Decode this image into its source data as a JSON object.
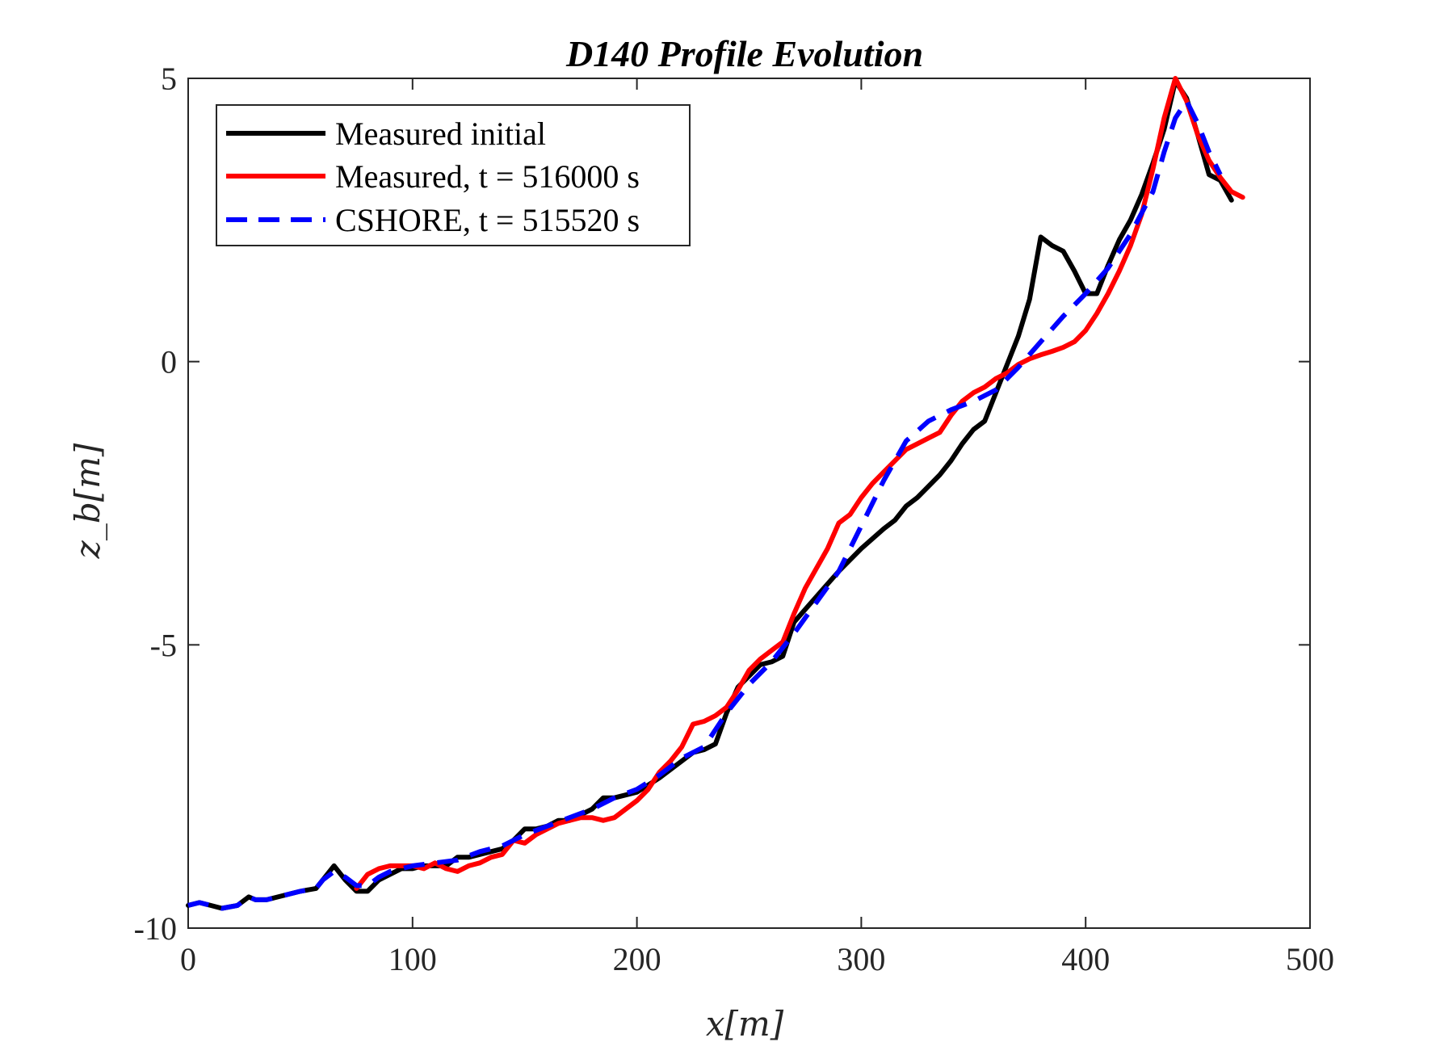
{
  "chart_data": {
    "type": "line",
    "title": "D140 Profile Evolution",
    "xlabel": "x[m]",
    "ylabel": "z_b[m]",
    "xlim": [
      0,
      500
    ],
    "ylim": [
      -10,
      5
    ],
    "xticks": [
      0,
      100,
      200,
      300,
      400,
      500
    ],
    "yticks": [
      -10,
      -5,
      0,
      5
    ],
    "xtick_labels": [
      "0",
      "100",
      "200",
      "300",
      "400",
      "500"
    ],
    "ytick_labels": [
      "-10",
      "-5",
      "0",
      "5"
    ],
    "grid": false,
    "legend_position": "top-left",
    "series": [
      {
        "name": "Measured initial",
        "color": "#000000",
        "style": "solid",
        "x": [
          0,
          5,
          10,
          15,
          22,
          27,
          30,
          35,
          40,
          45,
          50,
          57,
          60,
          65,
          70,
          75,
          80,
          85,
          90,
          95,
          100,
          105,
          110,
          115,
          120,
          125,
          130,
          135,
          140,
          145,
          150,
          155,
          160,
          165,
          170,
          175,
          180,
          185,
          190,
          195,
          200,
          210,
          220,
          225,
          230,
          235,
          240,
          245,
          250,
          255,
          260,
          265,
          270,
          280,
          290,
          300,
          310,
          315,
          320,
          325,
          330,
          335,
          340,
          345,
          350,
          355,
          360,
          365,
          370,
          375,
          380,
          385,
          390,
          395,
          400,
          405,
          410,
          415,
          420,
          425,
          430,
          435,
          440,
          445,
          450,
          455,
          460,
          465
        ],
        "y": [
          -9.6,
          -9.55,
          -9.6,
          -9.65,
          -9.6,
          -9.45,
          -9.5,
          -9.5,
          -9.45,
          -9.4,
          -9.35,
          -9.3,
          -9.15,
          -8.9,
          -9.15,
          -9.35,
          -9.35,
          -9.15,
          -9.05,
          -8.95,
          -8.95,
          -8.9,
          -8.9,
          -8.9,
          -8.75,
          -8.75,
          -8.7,
          -8.65,
          -8.6,
          -8.45,
          -8.25,
          -8.25,
          -8.2,
          -8.1,
          -8.1,
          -8.0,
          -7.9,
          -7.7,
          -7.7,
          -7.65,
          -7.6,
          -7.35,
          -7.05,
          -6.9,
          -6.85,
          -6.75,
          -6.2,
          -5.75,
          -5.55,
          -5.35,
          -5.3,
          -5.2,
          -4.6,
          -4.15,
          -3.7,
          -3.3,
          -2.95,
          -2.8,
          -2.55,
          -2.4,
          -2.2,
          -2.0,
          -1.75,
          -1.45,
          -1.2,
          -1.05,
          -0.55,
          -0.05,
          0.45,
          1.1,
          2.2,
          2.05,
          1.95,
          1.6,
          1.2,
          1.2,
          1.7,
          2.15,
          2.5,
          2.95,
          3.5,
          4.1,
          4.95,
          4.65,
          4.0,
          3.3,
          3.2,
          2.85
        ]
      },
      {
        "name": "Measured, t = 516000 s",
        "color": "#ff0000",
        "style": "solid",
        "x": [
          75,
          80,
          85,
          90,
          95,
          100,
          105,
          110,
          115,
          120,
          125,
          130,
          135,
          140,
          145,
          150,
          155,
          160,
          165,
          170,
          175,
          180,
          185,
          190,
          195,
          200,
          205,
          210,
          215,
          220,
          225,
          230,
          235,
          240,
          245,
          250,
          255,
          260,
          265,
          270,
          275,
          280,
          285,
          290,
          295,
          300,
          305,
          310,
          315,
          320,
          325,
          330,
          335,
          340,
          345,
          350,
          355,
          360,
          365,
          370,
          375,
          380,
          385,
          390,
          395,
          400,
          405,
          410,
          415,
          420,
          425,
          430,
          435,
          440,
          445,
          450,
          455,
          460,
          465,
          470
        ],
        "y": [
          -9.3,
          -9.05,
          -8.95,
          -8.9,
          -8.9,
          -8.9,
          -8.95,
          -8.85,
          -8.95,
          -9.0,
          -8.9,
          -8.85,
          -8.75,
          -8.7,
          -8.45,
          -8.5,
          -8.35,
          -8.25,
          -8.15,
          -8.1,
          -8.05,
          -8.05,
          -8.1,
          -8.05,
          -7.9,
          -7.75,
          -7.55,
          -7.25,
          -7.05,
          -6.8,
          -6.4,
          -6.35,
          -6.25,
          -6.1,
          -5.8,
          -5.45,
          -5.25,
          -5.1,
          -4.95,
          -4.45,
          -4.0,
          -3.65,
          -3.3,
          -2.85,
          -2.7,
          -2.4,
          -2.15,
          -1.95,
          -1.75,
          -1.55,
          -1.45,
          -1.35,
          -1.25,
          -0.95,
          -0.7,
          -0.55,
          -0.45,
          -0.3,
          -0.2,
          -0.05,
          0.05,
          0.12,
          0.18,
          0.25,
          0.35,
          0.55,
          0.85,
          1.2,
          1.6,
          2.05,
          2.6,
          3.4,
          4.3,
          5.0,
          4.6,
          4.0,
          3.55,
          3.25,
          3.0,
          2.9
        ]
      },
      {
        "name": "CSHORE, t = 515520 s",
        "color": "#0000ff",
        "style": "dashed",
        "x": [
          0,
          5,
          10,
          15,
          22,
          27,
          30,
          35,
          40,
          45,
          50,
          57,
          60,
          65,
          70,
          75,
          80,
          85,
          90,
          95,
          100,
          110,
          120,
          130,
          140,
          150,
          160,
          170,
          180,
          190,
          200,
          210,
          220,
          230,
          235,
          240,
          250,
          260,
          270,
          280,
          290,
          300,
          310,
          320,
          330,
          340,
          350,
          360,
          370,
          380,
          390,
          400,
          410,
          420,
          430,
          435,
          440,
          445,
          450,
          455,
          460
        ],
        "y": [
          -9.6,
          -9.55,
          -9.6,
          -9.65,
          -9.6,
          -9.45,
          -9.5,
          -9.5,
          -9.45,
          -9.4,
          -9.35,
          -9.3,
          -9.15,
          -9.0,
          -9.1,
          -9.25,
          -9.25,
          -9.1,
          -9.0,
          -8.95,
          -8.9,
          -8.85,
          -8.8,
          -8.65,
          -8.55,
          -8.35,
          -8.2,
          -8.05,
          -7.9,
          -7.7,
          -7.55,
          -7.3,
          -7.0,
          -6.8,
          -6.5,
          -6.2,
          -5.7,
          -5.3,
          -4.8,
          -4.25,
          -3.7,
          -2.9,
          -2.1,
          -1.4,
          -1.05,
          -0.85,
          -0.7,
          -0.5,
          -0.1,
          0.35,
          0.8,
          1.2,
          1.65,
          2.25,
          3.0,
          3.7,
          4.3,
          4.6,
          4.2,
          3.7,
          3.3
        ]
      }
    ]
  }
}
